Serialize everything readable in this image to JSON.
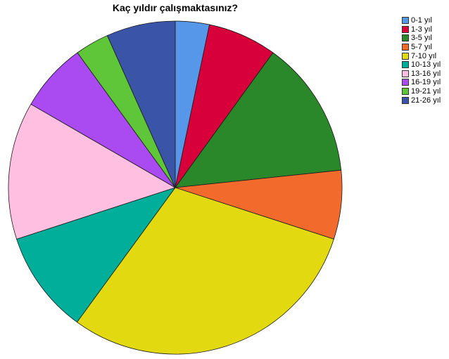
{
  "chart_data": {
    "type": "pie",
    "title": "Kaç yıldır çalışmaktasınız?",
    "categories": [
      "0-1 yıl",
      "1-3 yıl",
      "3-5 yıl",
      "5-7 yıl",
      "7-10 yıl",
      "10-13 yıl",
      "13-16 yıl",
      "16-19 yıl",
      "19-21 yıl",
      "21-26 yıl"
    ],
    "values": [
      3.4,
      6.9,
      13.8,
      6.9,
      31.0,
      10.3,
      13.8,
      6.9,
      3.4,
      6.9
    ],
    "colors": [
      "#5797ea",
      "#d8003a",
      "#2a872a",
      "#f26b2d",
      "#e2d910",
      "#00ae9a",
      "#ffbfe0",
      "#a94bf0",
      "#5fc63a",
      "#3a55a7"
    ],
    "legend_position": "right",
    "start_angle": "12 o'clock",
    "direction": "clockwise"
  }
}
